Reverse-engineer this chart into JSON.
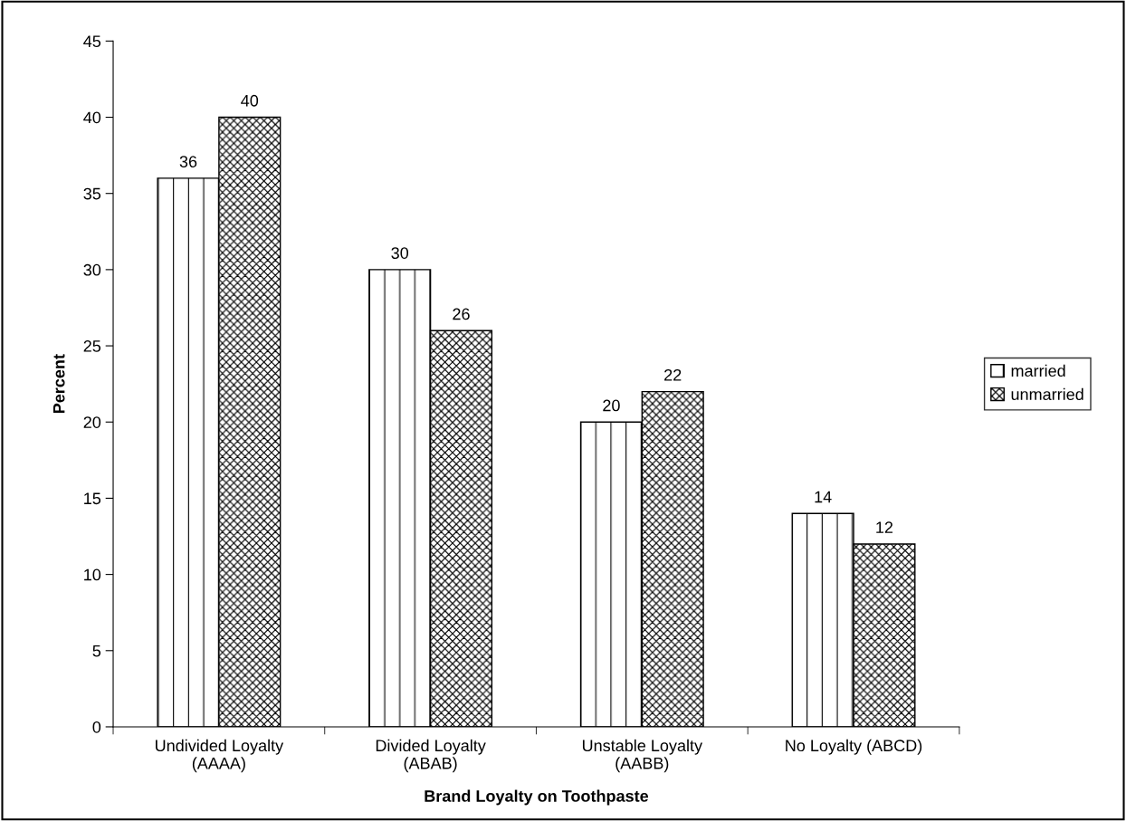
{
  "chart_data": {
    "type": "bar",
    "xlabel": "Brand Loyalty on Toothpaste",
    "ylabel": "Percent",
    "categories": [
      "Undivided Loyalty\n(AAAA)",
      "Divided Loyalty\n(ABAB)",
      "Unstable Loyalty\n(AABB)",
      "No Loyalty (ABCD)"
    ],
    "series": [
      {
        "name": "married",
        "color": "#000000",
        "values": [
          36,
          30,
          20,
          14
        ]
      },
      {
        "name": "unmarried",
        "color": "#000000",
        "values": [
          40,
          26,
          22,
          12
        ]
      }
    ],
    "ylim": [
      0,
      45
    ],
    "yticks": [
      0,
      5,
      10,
      15,
      20,
      25,
      30,
      35,
      40,
      45
    ],
    "data_labels": true,
    "legend": "right",
    "grid": false
  }
}
